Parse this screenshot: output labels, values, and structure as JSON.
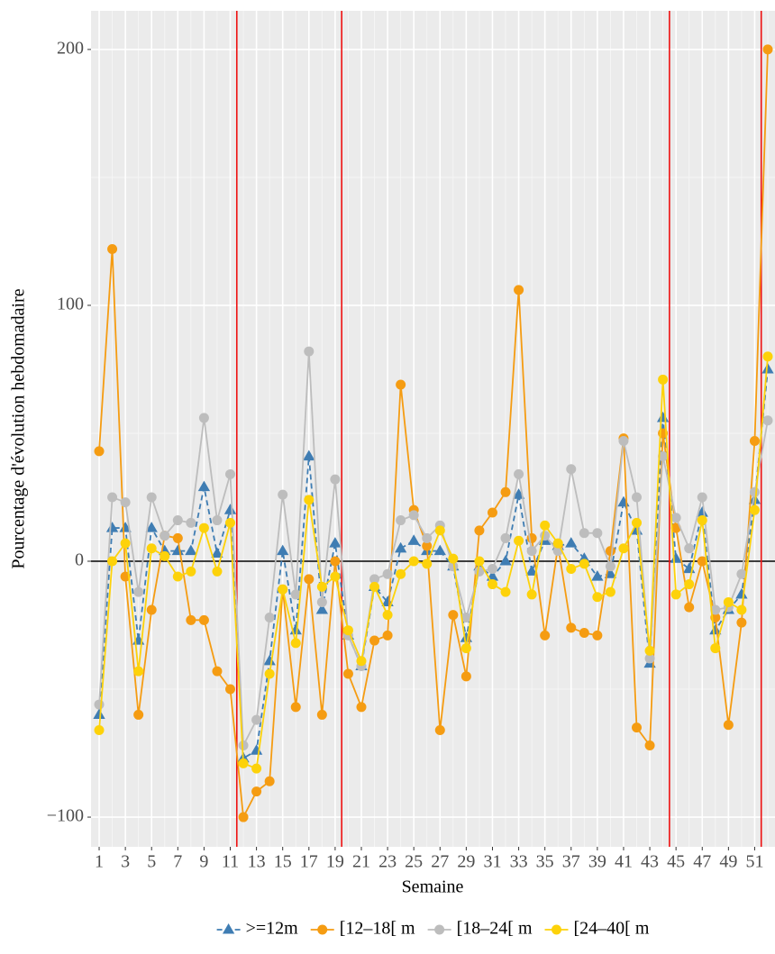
{
  "chart_data": {
    "type": "line",
    "x_label": "Semaine",
    "y_label": "Pourcentage d'évolution hebdomadaire",
    "x": [
      1,
      2,
      3,
      4,
      5,
      6,
      7,
      8,
      9,
      10,
      11,
      12,
      13,
      14,
      15,
      16,
      17,
      18,
      19,
      20,
      21,
      22,
      23,
      24,
      25,
      26,
      27,
      28,
      29,
      30,
      31,
      32,
      33,
      34,
      35,
      36,
      37,
      38,
      39,
      40,
      41,
      42,
      43,
      44,
      45,
      46,
      47,
      48,
      49,
      50,
      51,
      52
    ],
    "xlim": [
      0.38,
      52.55
    ],
    "xticks": [
      1,
      3,
      5,
      7,
      9,
      11,
      13,
      15,
      17,
      19,
      21,
      23,
      25,
      27,
      29,
      31,
      33,
      35,
      37,
      39,
      41,
      43,
      45,
      47,
      49,
      51
    ],
    "xminor": [
      2,
      4,
      6,
      8,
      10,
      12,
      14,
      16,
      18,
      20,
      22,
      24,
      26,
      28,
      30,
      32,
      34,
      36,
      38,
      40,
      42,
      44,
      46,
      48,
      50,
      52
    ],
    "ylim": [
      -111.6,
      215.1
    ],
    "yticks": [
      {
        "value": -100,
        "label": "−100"
      },
      0,
      100,
      200
    ],
    "yminor": [
      -50,
      50,
      150
    ],
    "grid": true,
    "hline": 0,
    "vlines": [
      11.5,
      19.5,
      44.5,
      51.5
    ],
    "vline_color": "#ee1111",
    "legend": "bottom",
    "series": [
      {
        "name": ">=12m",
        "color": "#3f7db3",
        "marker": "triangle",
        "dashed": true,
        "values": [
          -60,
          13,
          13,
          -31,
          13,
          4,
          4,
          4,
          29,
          3,
          20,
          -77,
          -74,
          -39,
          4,
          -27,
          41,
          -19,
          7,
          -29,
          -41,
          -10,
          -16,
          5,
          8,
          4,
          4,
          -2,
          -30,
          -2,
          -6,
          0,
          26,
          -4,
          8,
          6,
          7,
          1,
          -6,
          -5,
          23,
          12,
          -40,
          56,
          1,
          -3,
          19,
          -27,
          -19,
          -13,
          24,
          75
        ]
      },
      {
        "name": "[12–18[ m",
        "color": "#f59c12",
        "marker": "circle",
        "dashed": false,
        "values": [
          43,
          122,
          -6,
          -60,
          -19,
          10,
          9,
          -23,
          -23,
          -43,
          -50,
          -100,
          -90,
          -86,
          -11,
          -57,
          -7,
          -60,
          0,
          -44,
          -57,
          -31,
          -29,
          69,
          20,
          6,
          -66,
          -21,
          -45,
          12,
          19,
          27,
          106,
          9,
          -29,
          6,
          -26,
          -28,
          -29,
          4,
          48,
          -65,
          -72,
          50,
          13,
          -18,
          0,
          -22,
          -64,
          -24,
          47,
          200
        ]
      },
      {
        "name": "[18–24[ m",
        "color": "#bdbdbd",
        "marker": "circle",
        "dashed": false,
        "values": [
          -56,
          25,
          23,
          -12,
          25,
          10,
          16,
          15,
          56,
          16,
          34,
          -72,
          -62,
          -22,
          26,
          -13,
          82,
          -16,
          32,
          -29,
          -41,
          -7,
          -5,
          16,
          18,
          9,
          14,
          -2,
          -22,
          -4,
          -3,
          9,
          34,
          4,
          10,
          4,
          36,
          11,
          11,
          -2,
          47,
          25,
          -38,
          41,
          17,
          5,
          25,
          -19,
          -18,
          -5,
          27,
          55
        ]
      },
      {
        "name": "[24–40[ m",
        "color": "#fdd20a",
        "marker": "circle",
        "dashed": false,
        "values": [
          -66,
          0,
          7,
          -43,
          5,
          2,
          -6,
          -4,
          13,
          -4,
          15,
          -79,
          -81,
          -44,
          -11,
          -32,
          24,
          -10,
          -6,
          -27,
          -39,
          -10,
          -21,
          -5,
          0,
          -1,
          12,
          1,
          -34,
          0,
          -9,
          -12,
          8,
          -13,
          14,
          7,
          -3,
          -1,
          -14,
          -12,
          5,
          15,
          -35,
          71,
          -13,
          -9,
          16,
          -34,
          -16,
          -19,
          20,
          80
        ]
      }
    ]
  }
}
